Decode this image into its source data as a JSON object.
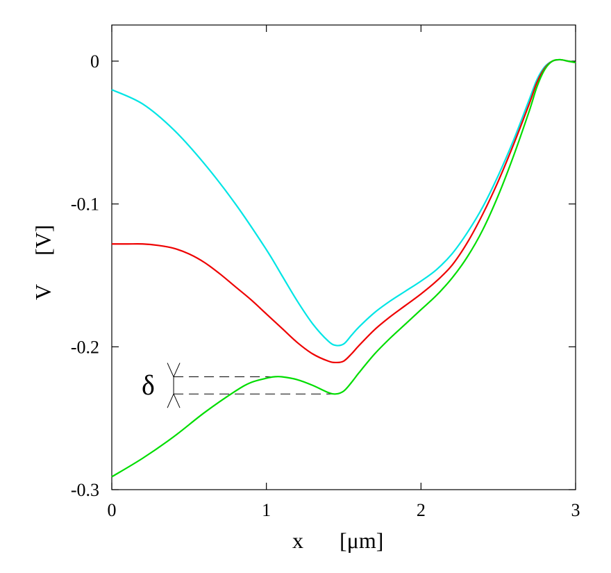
{
  "chart_data": {
    "type": "line",
    "title": "",
    "xlabel": "x",
    "xunit": "[μm]",
    "ylabel": "V",
    "yunit": "[V]",
    "xlim": [
      0,
      3.0
    ],
    "ylim": [
      -0.3,
      0.025
    ],
    "xticks": [
      0,
      1,
      2,
      3
    ],
    "yticks": [
      0,
      -0.1,
      -0.2,
      -0.3
    ],
    "xtick_labels": [
      "0",
      "1",
      "2",
      "3"
    ],
    "ytick_labels": [
      "0",
      "-0.1",
      "-0.2",
      "-0.3"
    ],
    "grid": false,
    "series": [
      {
        "color": "#00e5e5",
        "x": [
          0,
          0.2,
          0.4,
          0.6,
          0.8,
          1.0,
          1.1,
          1.2,
          1.3,
          1.4,
          1.45,
          1.5,
          1.55,
          1.6,
          1.7,
          1.8,
          1.9,
          2.0,
          2.1,
          2.2,
          2.3,
          2.4,
          2.5,
          2.6,
          2.7,
          2.75,
          2.8,
          2.85,
          2.9,
          2.95,
          3.0
        ],
        "y": [
          -0.02,
          -0.03,
          -0.048,
          -0.072,
          -0.1,
          -0.132,
          -0.15,
          -0.168,
          -0.184,
          -0.196,
          -0.199,
          -0.198,
          -0.192,
          -0.186,
          -0.176,
          -0.168,
          -0.161,
          -0.154,
          -0.146,
          -0.135,
          -0.12,
          -0.102,
          -0.08,
          -0.055,
          -0.027,
          -0.013,
          -0.004,
          0.0,
          0.001,
          0.0,
          -0.001
        ]
      },
      {
        "color": "#ee0000",
        "x": [
          0,
          0.1,
          0.2,
          0.3,
          0.4,
          0.5,
          0.6,
          0.7,
          0.8,
          0.9,
          1.0,
          1.1,
          1.2,
          1.3,
          1.4,
          1.45,
          1.5,
          1.55,
          1.6,
          1.7,
          1.8,
          1.9,
          2.0,
          2.1,
          2.2,
          2.3,
          2.4,
          2.5,
          2.6,
          2.7,
          2.75,
          2.8,
          2.85,
          2.9,
          2.95,
          3.0
        ],
        "y": [
          -0.128,
          -0.128,
          -0.128,
          -0.129,
          -0.131,
          -0.135,
          -0.141,
          -0.149,
          -0.158,
          -0.167,
          -0.177,
          -0.187,
          -0.197,
          -0.205,
          -0.21,
          -0.211,
          -0.21,
          -0.205,
          -0.199,
          -0.188,
          -0.179,
          -0.171,
          -0.163,
          -0.154,
          -0.143,
          -0.127,
          -0.107,
          -0.084,
          -0.058,
          -0.03,
          -0.015,
          -0.005,
          0.0,
          0.001,
          0.0,
          -0.001
        ]
      },
      {
        "color": "#00dd00",
        "x": [
          0,
          0.2,
          0.4,
          0.6,
          0.8,
          0.9,
          1.0,
          1.05,
          1.1,
          1.2,
          1.3,
          1.4,
          1.45,
          1.5,
          1.55,
          1.6,
          1.7,
          1.8,
          1.9,
          2.0,
          2.1,
          2.2,
          2.3,
          2.4,
          2.5,
          2.6,
          2.7,
          2.75,
          2.8,
          2.85,
          2.9,
          2.95,
          3.0
        ],
        "y": [
          -0.291,
          -0.278,
          -0.263,
          -0.246,
          -0.231,
          -0.225,
          -0.222,
          -0.221,
          -0.221,
          -0.223,
          -0.227,
          -0.232,
          -0.233,
          -0.231,
          -0.225,
          -0.218,
          -0.205,
          -0.194,
          -0.184,
          -0.174,
          -0.164,
          -0.152,
          -0.137,
          -0.118,
          -0.094,
          -0.066,
          -0.035,
          -0.018,
          -0.006,
          0.0,
          0.001,
          0.0,
          -0.001
        ]
      }
    ],
    "annotation": {
      "label": "δ",
      "y_top": -0.221,
      "y_bottom": -0.233,
      "x_marker": 0.4,
      "x_line_end_top": 1.05,
      "x_line_end_bottom": 1.45
    }
  }
}
